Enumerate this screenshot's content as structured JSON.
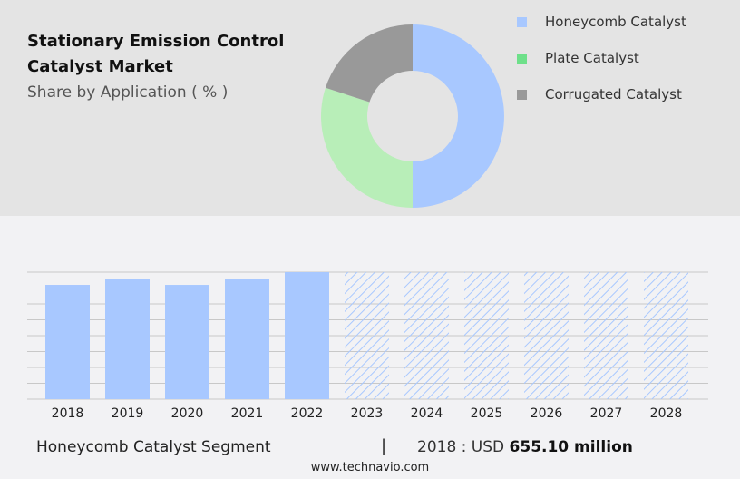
{
  "header": {
    "title": "Stationary Emission Control Catalyst Market",
    "subtitle": "Share by Application ( % )"
  },
  "chart_data": [
    {
      "type": "pie",
      "subtype": "donut",
      "title": "Stationary Emission Control Catalyst Market",
      "subtitle": "Share by Application ( % )",
      "legend_placement": "right",
      "slices": [
        {
          "name": "Honeycomb Catalyst",
          "value": 50,
          "color": "#a8c8ff"
        },
        {
          "name": "Plate Catalyst",
          "value": 30,
          "color": "#b8eeb8"
        },
        {
          "name": "Corrugated Catalyst",
          "value": 20,
          "color": "#999999"
        }
      ],
      "legend_colors": [
        "#a8c8ff",
        "#6ee08a",
        "#999999"
      ]
    },
    {
      "type": "bar",
      "categories": [
        "2018",
        "2019",
        "2020",
        "2021",
        "2022",
        "2023",
        "2024",
        "2025",
        "2026",
        "2027",
        "2028"
      ],
      "values": [
        655.1,
        691,
        655,
        691,
        728,
        null,
        null,
        null,
        null,
        null,
        null
      ],
      "forecast_from": "2023",
      "color": "#a8c8ff",
      "grid": true,
      "ylabel": "",
      "xlabel": ""
    }
  ],
  "footer": {
    "segment": "Honeycomb Catalyst Segment",
    "separator": "|",
    "value_prefix": "2018 : USD",
    "value": "655.10 million",
    "site": "www.technavio.com"
  }
}
